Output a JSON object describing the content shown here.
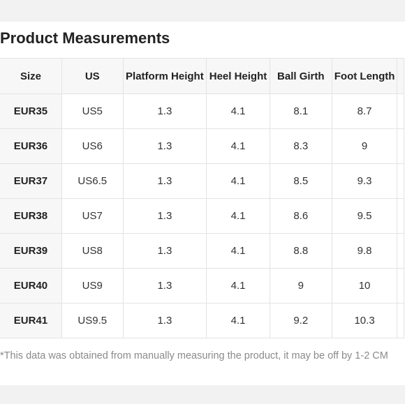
{
  "title": "Product Measurements",
  "table": {
    "headers": [
      "Size",
      "US",
      "Platform Height",
      "Heel Height",
      "Ball Girth",
      "Foot Length"
    ],
    "rows": [
      [
        "EUR35",
        "US5",
        "1.3",
        "4.1",
        "8.1",
        "8.7"
      ],
      [
        "EUR36",
        "US6",
        "1.3",
        "4.1",
        "8.3",
        "9"
      ],
      [
        "EUR37",
        "US6.5",
        "1.3",
        "4.1",
        "8.5",
        "9.3"
      ],
      [
        "EUR38",
        "US7",
        "1.3",
        "4.1",
        "8.6",
        "9.5"
      ],
      [
        "EUR39",
        "US8",
        "1.3",
        "4.1",
        "8.8",
        "9.8"
      ],
      [
        "EUR40",
        "US9",
        "1.3",
        "4.1",
        "9",
        "10"
      ],
      [
        "EUR41",
        "US9.5",
        "1.3",
        "4.1",
        "9.2",
        "10.3"
      ]
    ]
  },
  "note": "*This data was obtained from manually measuring the product, it may be off by 1-2 CM"
}
